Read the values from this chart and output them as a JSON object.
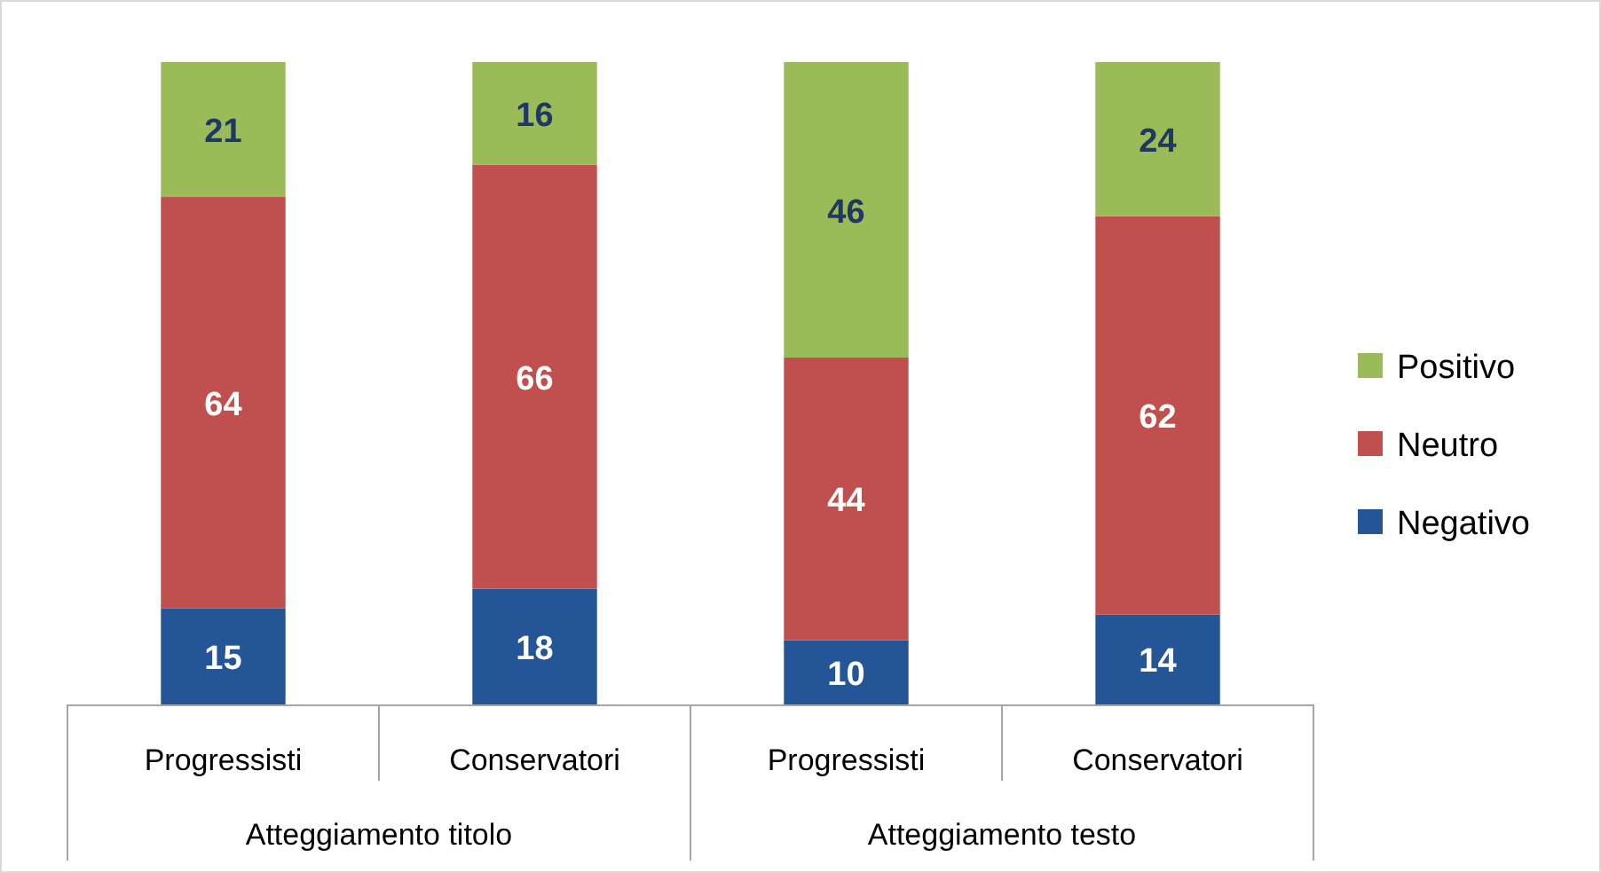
{
  "chart_data": {
    "type": "bar",
    "stacked": true,
    "data_labels": true,
    "legend": "right",
    "categories": [
      "Progressisti",
      "Conservatori",
      "Progressisti",
      "Conservatori"
    ],
    "series": [
      {
        "name": "Negativo",
        "color": "#245597",
        "values": [
          15,
          18,
          10,
          14
        ]
      },
      {
        "name": "Neutro",
        "color": "#c0504d",
        "values": [
          64,
          66,
          44,
          62
        ]
      },
      {
        "name": "Positivo",
        "color": "#9bbb59",
        "values": [
          21,
          16,
          46,
          24
        ]
      }
    ],
    "annotations": [
      "Atteggiamento titolo",
      "Atteggiamento testo"
    ]
  }
}
